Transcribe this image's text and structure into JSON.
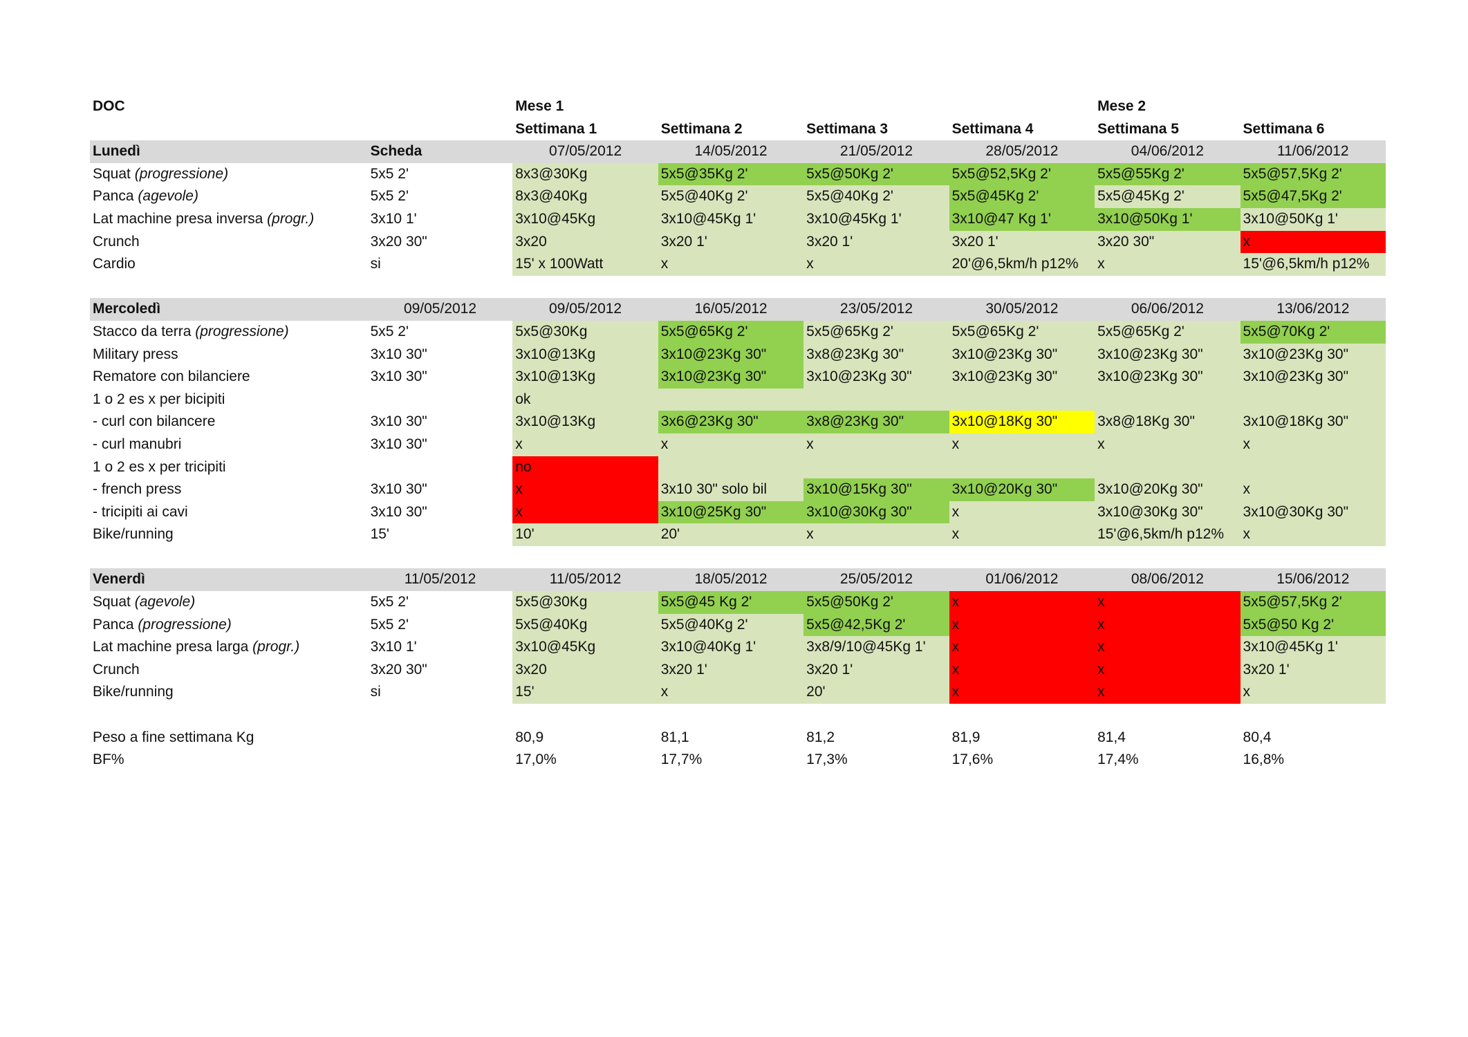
{
  "header": {
    "title": "DOC",
    "month_row": [
      "Mese 1",
      "",
      "",
      "",
      "Mese 2",
      ""
    ],
    "week_row": [
      "Settimana 1",
      "Settimana 2",
      "Settimana 3",
      "Settimana 4",
      "Settimana 5",
      "Settimana 6"
    ]
  },
  "colors": {
    "light_green": "#d8e4bc",
    "green": "#92d050",
    "red": "#ff0000",
    "yellow": "#ffff00",
    "header_grey": "#d9d9d9"
  },
  "sections": [
    {
      "day": "Lunedì",
      "scheda": "Scheda",
      "dates": [
        "07/05/2012",
        "14/05/2012",
        "21/05/2012",
        "28/05/2012",
        "04/06/2012",
        "11/06/2012"
      ],
      "rows": [
        {
          "name": "Squat ",
          "name_italic": "(progressione)",
          "scheda": "5x5 2'",
          "cells": [
            {
              "t": "8x3@30Kg",
              "c": "lg"
            },
            {
              "t": "5x5@35Kg 2'",
              "c": "g"
            },
            {
              "t": "5x5@50Kg 2'",
              "c": "g"
            },
            {
              "t": "5x5@52,5Kg 2'",
              "c": "g"
            },
            {
              "t": "5x5@55Kg 2'",
              "c": "g"
            },
            {
              "t": "5x5@57,5Kg 2'",
              "c": "g"
            }
          ]
        },
        {
          "name": "Panca ",
          "name_italic": "(agevole)",
          "scheda": "5x5 2'",
          "cells": [
            {
              "t": "8x3@40Kg",
              "c": "lg"
            },
            {
              "t": "5x5@40Kg 2'",
              "c": "lg"
            },
            {
              "t": "5x5@40Kg 2'",
              "c": "lg"
            },
            {
              "t": "5x5@45Kg 2'",
              "c": "g"
            },
            {
              "t": "5x5@45Kg 2'",
              "c": "lg"
            },
            {
              "t": "5x5@47,5Kg 2'",
              "c": "g"
            }
          ]
        },
        {
          "name": "Lat machine presa inversa ",
          "name_italic": "(progr.)",
          "scheda": "3x10 1'",
          "cells": [
            {
              "t": "3x10@45Kg",
              "c": "lg"
            },
            {
              "t": "3x10@45Kg 1'",
              "c": "lg"
            },
            {
              "t": "3x10@45Kg 1'",
              "c": "lg"
            },
            {
              "t": "3x10@47 Kg 1'",
              "c": "g"
            },
            {
              "t": "3x10@50Kg 1'",
              "c": "g"
            },
            {
              "t": "3x10@50Kg 1'",
              "c": "lg"
            }
          ]
        },
        {
          "name": "Crunch",
          "name_italic": "",
          "scheda": "3x20 30\"",
          "cells": [
            {
              "t": "3x20",
              "c": "lg"
            },
            {
              "t": "3x20 1'",
              "c": "lg"
            },
            {
              "t": "3x20 1'",
              "c": "lg"
            },
            {
              "t": "3x20 1'",
              "c": "lg"
            },
            {
              "t": "3x20 30\"",
              "c": "lg"
            },
            {
              "t": "x",
              "c": "r"
            }
          ]
        },
        {
          "name": "Cardio",
          "name_italic": "",
          "scheda": "si",
          "cells": [
            {
              "t": "15' x 100Watt",
              "c": "lg"
            },
            {
              "t": "x",
              "c": "lg"
            },
            {
              "t": "x",
              "c": "lg"
            },
            {
              "t": "20'@6,5km/h p12%",
              "c": "lg"
            },
            {
              "t": "x",
              "c": "lg"
            },
            {
              "t": "15'@6,5km/h p12%",
              "c": "lg"
            }
          ]
        }
      ]
    },
    {
      "day": "Mercoledì",
      "scheda": "09/05/2012",
      "dates": [
        "09/05/2012",
        "16/05/2012",
        "23/05/2012",
        "30/05/2012",
        "06/06/2012",
        "13/06/2012"
      ],
      "rows": [
        {
          "name": "Stacco da terra ",
          "name_italic": "(progressione)",
          "scheda": "5x5 2'",
          "cells": [
            {
              "t": "5x5@30Kg",
              "c": "lg"
            },
            {
              "t": "5x5@65Kg 2'",
              "c": "g"
            },
            {
              "t": "5x5@65Kg 2'",
              "c": "lg"
            },
            {
              "t": "5x5@65Kg 2'",
              "c": "lg"
            },
            {
              "t": "5x5@65Kg 2'",
              "c": "lg"
            },
            {
              "t": "5x5@70Kg 2'",
              "c": "g"
            }
          ]
        },
        {
          "name": "Military press",
          "name_italic": "",
          "scheda": "3x10 30\"",
          "cells": [
            {
              "t": "3x10@13Kg",
              "c": "lg"
            },
            {
              "t": "3x10@23Kg 30\"",
              "c": "g"
            },
            {
              "t": "3x8@23Kg 30\"",
              "c": "lg"
            },
            {
              "t": "3x10@23Kg 30\"",
              "c": "lg"
            },
            {
              "t": "3x10@23Kg 30\"",
              "c": "lg"
            },
            {
              "t": "3x10@23Kg 30\"",
              "c": "lg"
            }
          ]
        },
        {
          "name": "Rematore con bilanciere",
          "name_italic": "",
          "scheda": "3x10 30\"",
          "cells": [
            {
              "t": "3x10@13Kg",
              "c": "lg"
            },
            {
              "t": "3x10@23Kg 30\"",
              "c": "g"
            },
            {
              "t": "3x10@23Kg 30\"",
              "c": "lg"
            },
            {
              "t": "3x10@23Kg 30\"",
              "c": "lg"
            },
            {
              "t": "3x10@23Kg 30\"",
              "c": "lg"
            },
            {
              "t": "3x10@23Kg 30\"",
              "c": "lg"
            }
          ]
        },
        {
          "name": "1 o 2 es x per bicipiti",
          "name_italic": "",
          "scheda": "",
          "cells": [
            {
              "t": "ok",
              "c": "lg"
            },
            {
              "t": "",
              "c": "lg"
            },
            {
              "t": "",
              "c": "lg"
            },
            {
              "t": "",
              "c": "lg"
            },
            {
              "t": "",
              "c": "lg"
            },
            {
              "t": "",
              "c": "lg"
            }
          ]
        },
        {
          "name": "- curl con bilancere",
          "name_italic": "",
          "scheda": "3x10 30\"",
          "cells": [
            {
              "t": "3x10@13Kg",
              "c": "lg"
            },
            {
              "t": "3x6@23Kg 30\"",
              "c": "g"
            },
            {
              "t": "3x8@23Kg 30\"",
              "c": "g"
            },
            {
              "t": "3x10@18Kg 30\"",
              "c": "y"
            },
            {
              "t": "3x8@18Kg 30\"",
              "c": "lg"
            },
            {
              "t": "3x10@18Kg 30\"",
              "c": "lg"
            }
          ]
        },
        {
          "name": "- curl manubri",
          "name_italic": "",
          "scheda": "3x10 30\"",
          "cells": [
            {
              "t": "x",
              "c": "lg"
            },
            {
              "t": "x",
              "c": "lg"
            },
            {
              "t": "x",
              "c": "lg"
            },
            {
              "t": "x",
              "c": "lg"
            },
            {
              "t": "x",
              "c": "lg"
            },
            {
              "t": "x",
              "c": "lg"
            }
          ]
        },
        {
          "name": "1 o 2 es x per tricipiti",
          "name_italic": "",
          "scheda": "",
          "cells": [
            {
              "t": "no",
              "c": "r"
            },
            {
              "t": "",
              "c": "lg"
            },
            {
              "t": "",
              "c": "lg"
            },
            {
              "t": "",
              "c": "lg"
            },
            {
              "t": "",
              "c": "lg"
            },
            {
              "t": "",
              "c": "lg"
            }
          ]
        },
        {
          "name": "- french press",
          "name_italic": "",
          "scheda": "3x10 30\"",
          "cells": [
            {
              "t": "x",
              "c": "r"
            },
            {
              "t": "3x10 30\" solo bil",
              "c": "lg"
            },
            {
              "t": "3x10@15Kg 30\"",
              "c": "g"
            },
            {
              "t": "3x10@20Kg 30\"",
              "c": "g"
            },
            {
              "t": "3x10@20Kg 30\"",
              "c": "lg"
            },
            {
              "t": "x",
              "c": "lg"
            }
          ]
        },
        {
          "name": "- tricipiti ai cavi",
          "name_italic": "",
          "scheda": "3x10 30\"",
          "cells": [
            {
              "t": "x",
              "c": "r"
            },
            {
              "t": "3x10@25Kg 30\"",
              "c": "g"
            },
            {
              "t": "3x10@30Kg 30\"",
              "c": "g"
            },
            {
              "t": "x",
              "c": "lg"
            },
            {
              "t": "3x10@30Kg 30\"",
              "c": "lg"
            },
            {
              "t": "3x10@30Kg 30\"",
              "c": "lg"
            }
          ]
        },
        {
          "name": "Bike/running",
          "name_italic": "",
          "scheda": "15'",
          "cells": [
            {
              "t": "10'",
              "c": "lg"
            },
            {
              "t": "20'",
              "c": "lg"
            },
            {
              "t": "x",
              "c": "lg"
            },
            {
              "t": "x",
              "c": "lg"
            },
            {
              "t": "15'@6,5km/h p12%",
              "c": "lg"
            },
            {
              "t": "x",
              "c": "lg"
            }
          ]
        }
      ]
    },
    {
      "day": "Venerdì",
      "scheda": "11/05/2012",
      "dates": [
        "11/05/2012",
        "18/05/2012",
        "25/05/2012",
        "01/06/2012",
        "08/06/2012",
        "15/06/2012"
      ],
      "rows": [
        {
          "name": "Squat ",
          "name_italic": "(agevole)",
          "scheda": "5x5 2'",
          "cells": [
            {
              "t": "5x5@30Kg",
              "c": "lg"
            },
            {
              "t": "5x5@45 Kg 2'",
              "c": "g"
            },
            {
              "t": "5x5@50Kg 2'",
              "c": "g"
            },
            {
              "t": "x",
              "c": "r"
            },
            {
              "t": "x",
              "c": "r"
            },
            {
              "t": "5x5@57,5Kg 2'",
              "c": "g"
            }
          ]
        },
        {
          "name": "Panca ",
          "name_italic": "(progressione)",
          "scheda": "5x5 2'",
          "cells": [
            {
              "t": "5x5@40Kg",
              "c": "lg"
            },
            {
              "t": "5x5@40Kg 2'",
              "c": "lg"
            },
            {
              "t": "5x5@42,5Kg 2'",
              "c": "g"
            },
            {
              "t": "x",
              "c": "r"
            },
            {
              "t": "x",
              "c": "r"
            },
            {
              "t": "5x5@50 Kg 2'",
              "c": "g"
            }
          ]
        },
        {
          "name": "Lat machine presa larga ",
          "name_italic": "(progr.)",
          "scheda": "3x10 1'",
          "cells": [
            {
              "t": "3x10@45Kg",
              "c": "lg"
            },
            {
              "t": "3x10@40Kg 1'",
              "c": "lg"
            },
            {
              "t": "3x8/9/10@45Kg 1'",
              "c": "lg"
            },
            {
              "t": "x",
              "c": "r"
            },
            {
              "t": "x",
              "c": "r"
            },
            {
              "t": "3x10@45Kg 1'",
              "c": "lg"
            }
          ]
        },
        {
          "name": "Crunch",
          "name_italic": "",
          "scheda": "3x20 30\"",
          "cells": [
            {
              "t": "3x20",
              "c": "lg"
            },
            {
              "t": "3x20 1'",
              "c": "lg"
            },
            {
              "t": "3x20 1'",
              "c": "lg"
            },
            {
              "t": "x",
              "c": "r"
            },
            {
              "t": "x",
              "c": "r"
            },
            {
              "t": "3x20 1'",
              "c": "lg"
            }
          ]
        },
        {
          "name": "Bike/running",
          "name_italic": "",
          "scheda": "si",
          "cells": [
            {
              "t": "15'",
              "c": "lg"
            },
            {
              "t": "x",
              "c": "lg"
            },
            {
              "t": "20'",
              "c": "lg"
            },
            {
              "t": "x",
              "c": "r"
            },
            {
              "t": "x",
              "c": "r"
            },
            {
              "t": "x",
              "c": "lg"
            }
          ]
        }
      ]
    }
  ],
  "footer": {
    "weight_label": "Peso a fine settimana Kg",
    "weights": [
      "80,9",
      "81,1",
      "81,2",
      "81,9",
      "81,4",
      "80,4"
    ],
    "bf_label": "BF%",
    "bf": [
      "17,0%",
      "17,7%",
      "17,3%",
      "17,6%",
      "17,4%",
      "16,8%"
    ]
  }
}
